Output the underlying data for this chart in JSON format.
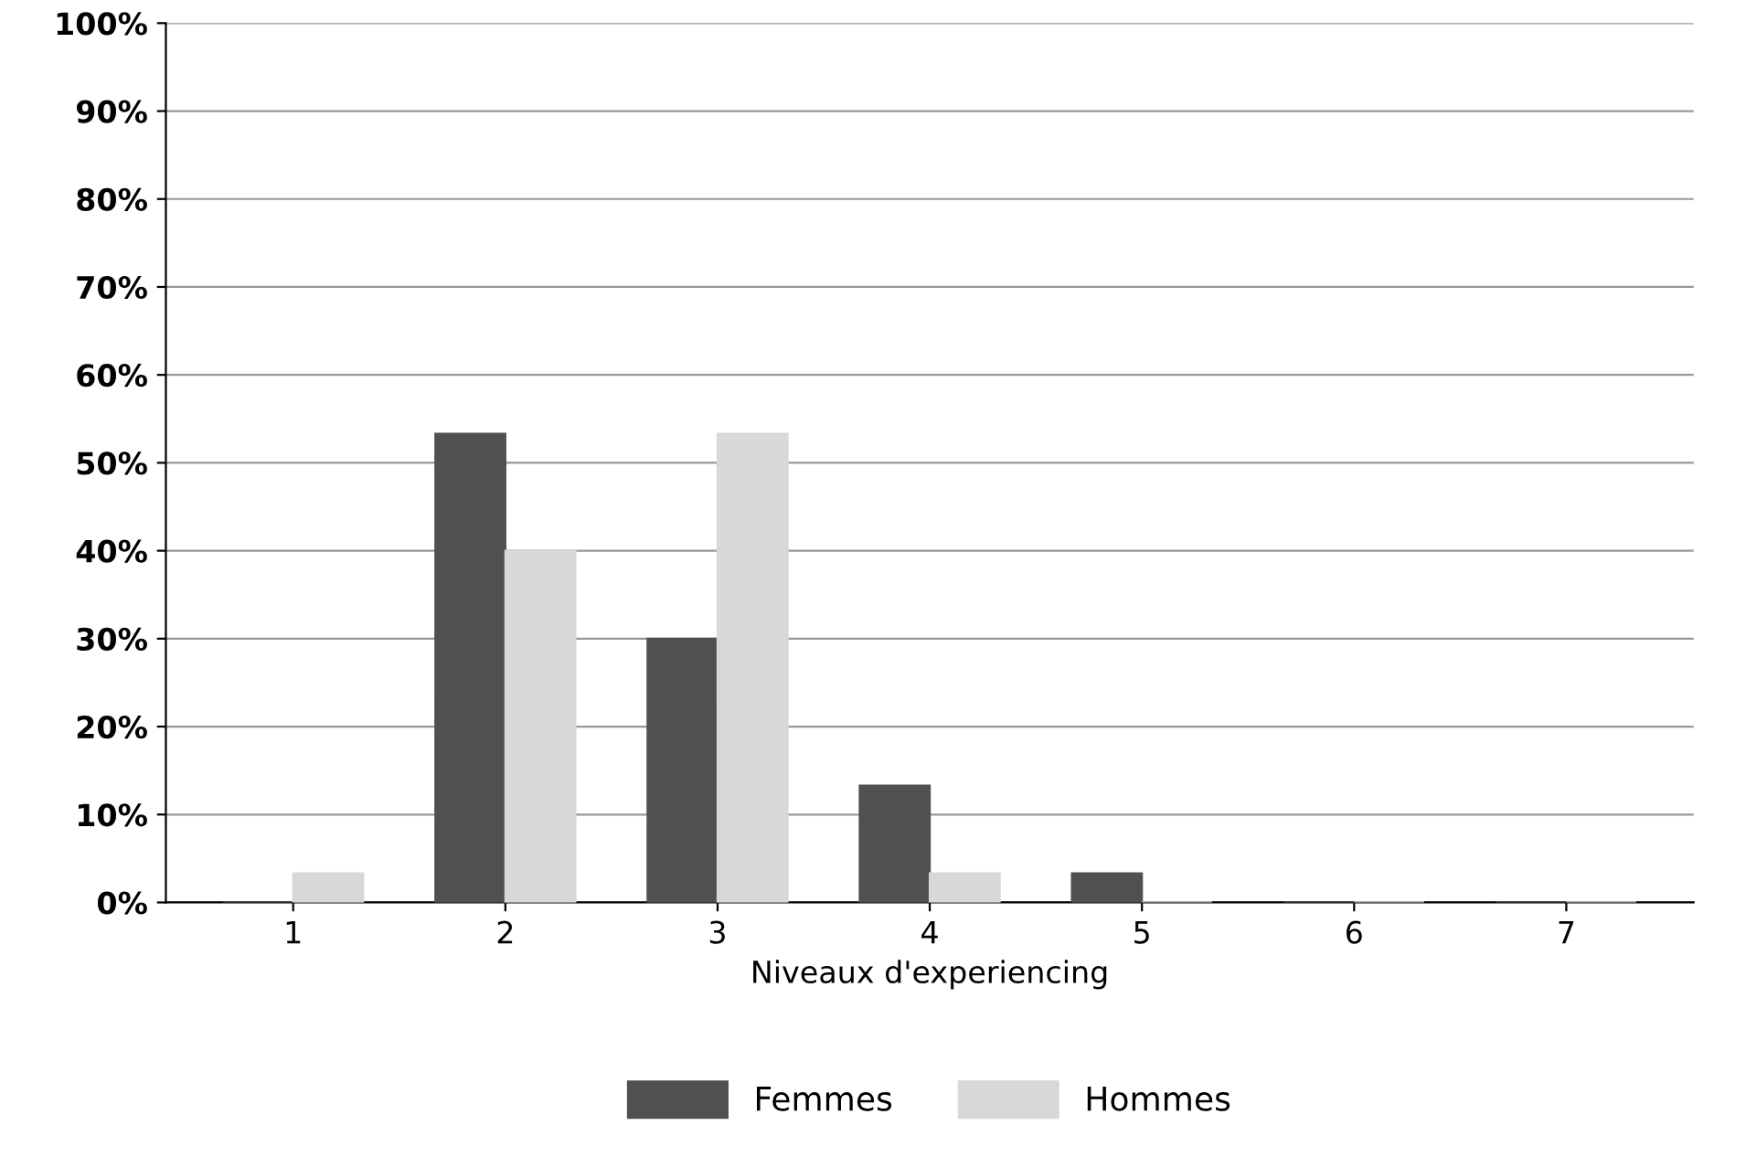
{
  "chart_data": {
    "type": "bar",
    "xlabel": "Niveaux d'experiencing",
    "categories": [
      "1",
      "2",
      "3",
      "4",
      "5",
      "6",
      "7"
    ],
    "series": [
      {
        "name": "Femmes",
        "color": "#505050",
        "values": [
          0,
          53.3,
          30,
          13.3,
          3.3,
          0,
          0
        ]
      },
      {
        "name": "Hommes",
        "color": "#d8d8d8",
        "values": [
          3.3,
          40,
          53.3,
          3.3,
          0,
          0,
          0
        ]
      }
    ],
    "ylim": [
      0,
      100
    ],
    "yticks": [
      {
        "value": 0,
        "label": "0%"
      },
      {
        "value": 10,
        "label": "10%"
      },
      {
        "value": 20,
        "label": "20%"
      },
      {
        "value": 30,
        "label": "30%"
      },
      {
        "value": 40,
        "label": "40%"
      },
      {
        "value": 50,
        "label": "50%"
      },
      {
        "value": 60,
        "label": "60%"
      },
      {
        "value": 70,
        "label": "70%"
      },
      {
        "value": 80,
        "label": "80%"
      },
      {
        "value": 90,
        "label": "90%"
      },
      {
        "value": 100,
        "label": "100%"
      }
    ],
    "grid": "y",
    "legend": "bottom"
  }
}
